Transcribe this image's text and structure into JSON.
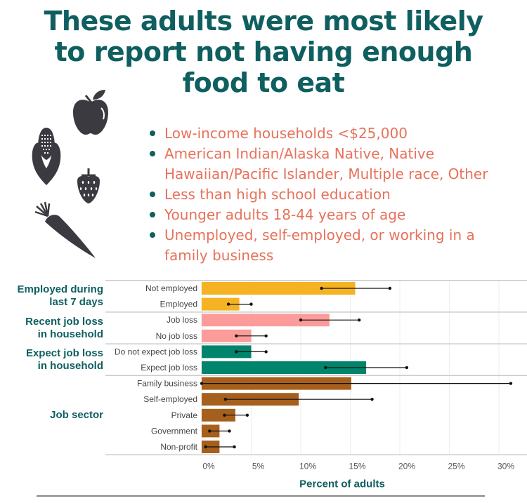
{
  "title": [
    "These adults were most likely",
    "to report not having enough",
    "food to eat"
  ],
  "bullets": [
    "Low-income households <$25,000",
    "American Indian/Alaska Native, Native Hawaiian/Pacific Islander, Multiple race, Other",
    "Less than high school education",
    "Younger adults 18-44 years of age",
    "Unemployed, self-employed, or working in a family business"
  ],
  "icons": [
    "apple-icon",
    "corn-icon",
    "strawberry-icon",
    "carrot-icon"
  ],
  "colors": {
    "teal": "#0f5f60",
    "coral": "#e8715a",
    "employed": "#f5b324",
    "jobloss": "#fb9c9a",
    "expect": "#00846c",
    "sector": "#a65f1c"
  },
  "chart_data": {
    "type": "bar",
    "orientation": "horizontal",
    "xlabel": "Percent of adults",
    "xlim": [
      0,
      32
    ],
    "xticks": [
      "0%",
      "5%",
      "10%",
      "15%",
      "20%",
      "25%",
      "30%"
    ],
    "grid": true,
    "groups": [
      {
        "label": [
          "Employed during",
          "last 7 days"
        ],
        "color": "#f5b324",
        "categories": [
          "Not employed",
          "Employed"
        ],
        "values": [
          15.5,
          3.8
        ],
        "ci_low": [
          12.1,
          2.7
        ],
        "ci_high": [
          19.0,
          5.0
        ]
      },
      {
        "label": [
          "Recent job loss",
          "in household"
        ],
        "color": "#fb9c9a",
        "categories": [
          "Job loss",
          "No job loss"
        ],
        "values": [
          12.9,
          5.0
        ],
        "ci_low": [
          10.0,
          3.5
        ],
        "ci_high": [
          15.9,
          6.5
        ]
      },
      {
        "label": [
          "Expect job loss",
          "in household"
        ],
        "color": "#00846c",
        "categories": [
          "Do not expect job loss",
          "Expect job loss"
        ],
        "values": [
          5.0,
          16.6
        ],
        "ci_low": [
          3.5,
          12.5
        ],
        "ci_high": [
          6.5,
          20.7
        ]
      },
      {
        "label": [
          "Job sector"
        ],
        "color": "#a65f1c",
        "categories": [
          "Family business",
          "Self-employed",
          "Private",
          "Government",
          "Non-profit"
        ],
        "values": [
          15.1,
          9.8,
          3.4,
          1.8,
          1.8
        ],
        "ci_low": [
          0.0,
          2.4,
          2.3,
          0.8,
          0.4
        ],
        "ci_high": [
          31.2,
          17.2,
          4.6,
          2.8,
          3.3
        ]
      }
    ]
  }
}
